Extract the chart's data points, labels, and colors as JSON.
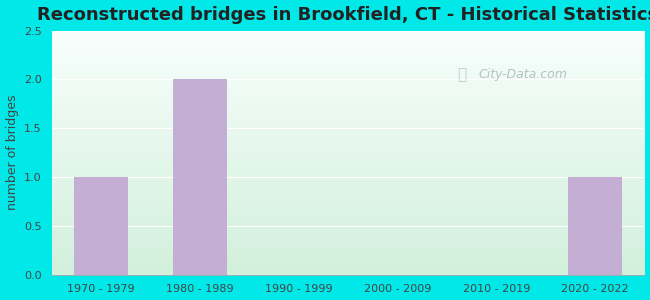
{
  "title": "Reconstructed bridges in Brookfield, CT - Historical Statistics",
  "categories": [
    "1970 - 1979",
    "1980 - 1989",
    "1990 - 1999",
    "2000 - 2009",
    "2010 - 2019",
    "2020 - 2022"
  ],
  "values": [
    1,
    2,
    0,
    0,
    0,
    1
  ],
  "bar_color": "#c4aed4",
  "ylabel": "number of bridges",
  "ylim": [
    0,
    2.5
  ],
  "yticks": [
    0,
    0.5,
    1,
    1.5,
    2,
    2.5
  ],
  "background_outer": "#00e8e8",
  "title_fontsize": 13,
  "tick_fontsize": 8,
  "ylabel_fontsize": 9,
  "watermark_text": "City-Data.com",
  "watermark_color": "#a8b8b8",
  "grid_color": "#ffffff",
  "bar_width": 0.55,
  "plot_bg_top": "#f8fefc",
  "plot_bg_bottom": "#dff5e3",
  "title_color": "#222222"
}
